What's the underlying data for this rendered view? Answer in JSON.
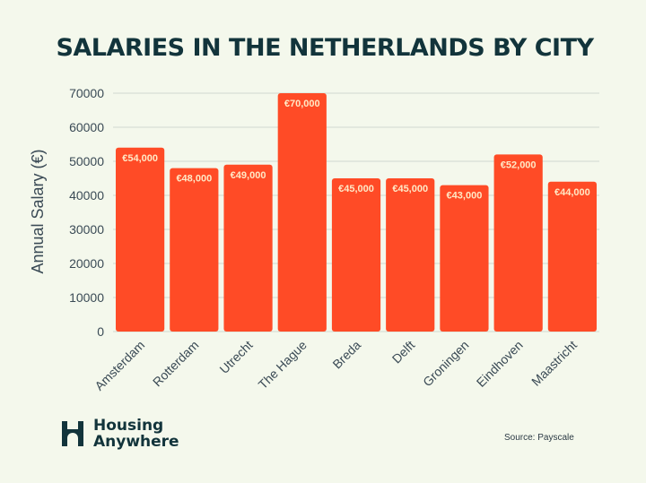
{
  "chart_data": {
    "type": "bar",
    "title": "SALARIES IN THE NETHERLANDS BY CITY",
    "xlabel": "",
    "ylabel": "Annual Salary (€)",
    "ylim": [
      0,
      70000
    ],
    "yticks": [
      "0",
      "10000",
      "20000",
      "30000",
      "40000",
      "50000",
      "60000",
      "70000"
    ],
    "categories": [
      "Amsterdam",
      "Rotterdam",
      "Utrecht",
      "The Hague",
      "Breda",
      "Delft",
      "Groningen",
      "Eindhoven",
      "Maastricht"
    ],
    "values": [
      54000,
      48000,
      49000,
      70000,
      45000,
      45000,
      43000,
      52000,
      44000
    ],
    "data_labels": [
      "€54,000",
      "€48,000",
      "€49,000",
      "€70,000",
      "€45,000",
      "€45,000",
      "€43,000",
      "€52,000",
      "€44,000"
    ],
    "grid": true,
    "colors": {
      "bar": "#ff4b26",
      "grid": "#cfd8d0",
      "text": "#12343b"
    }
  },
  "brand": {
    "line1": "Housing",
    "line2": "Anywhere",
    "icon": "housing-anywhere-logo-icon"
  },
  "source": "Source: Payscale"
}
